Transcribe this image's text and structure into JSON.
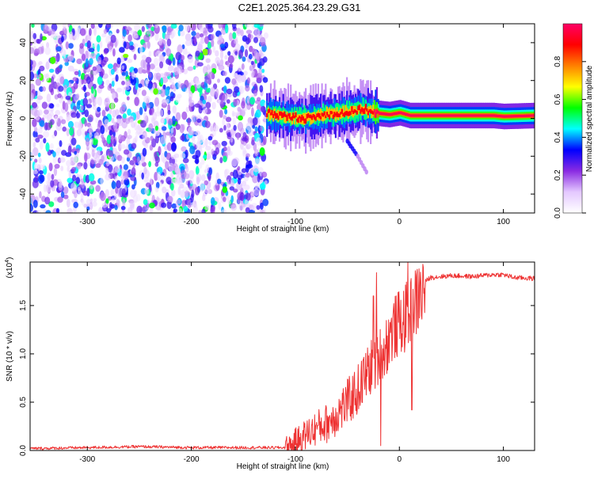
{
  "title": "C2E1.2025.364.23.29.G31",
  "chart_data": [
    {
      "type": "heatmap",
      "name": "spectrogram",
      "xlabel": "Height of straight line (km)",
      "ylabel": "Frequency (Hz)",
      "xlim": [
        -355,
        130
      ],
      "ylim": [
        -50,
        50
      ],
      "xticks": [
        -300,
        -200,
        -100,
        0,
        100
      ],
      "yticks": [
        -40,
        -20,
        0,
        20,
        40
      ],
      "noise_region": [
        -355,
        -128
      ],
      "signal_region": [
        -128,
        130
      ],
      "signal_center_hz": [
        [
          -128,
          3
        ],
        [
          -110,
          1
        ],
        [
          -90,
          0
        ],
        [
          -70,
          2
        ],
        [
          -50,
          3
        ],
        [
          -35,
          5
        ],
        [
          -25,
          3
        ],
        [
          -10,
          2
        ],
        [
          0,
          3
        ],
        [
          10,
          1.5
        ],
        [
          30,
          1.5
        ],
        [
          60,
          1.5
        ],
        [
          90,
          1.5
        ],
        [
          100,
          1
        ],
        [
          130,
          1.5
        ]
      ],
      "faint_trail": [
        [
          -50,
          -12
        ],
        [
          -40,
          -20
        ],
        [
          -30,
          -30
        ]
      ],
      "colorbar": {
        "label": "Normalized spectral amplitude",
        "min": 0.0,
        "max": 1.0,
        "ticks": [
          "0.0",
          "0.2",
          "0.4",
          "0.6",
          "0.8"
        ],
        "tick_values": [
          0.0,
          0.2,
          0.4,
          0.6,
          0.8
        ],
        "colors": [
          "#ffffff",
          "#e4c8ff",
          "#8a2be2",
          "#0000ff",
          "#00ffff",
          "#00ff00",
          "#ffff00",
          "#ff8000",
          "#ff0000",
          "#ff0066"
        ]
      }
    },
    {
      "type": "line",
      "name": "snr",
      "xlabel": "Height of straight line (km)",
      "ylabel": "SNR (10 * v/v)",
      "multiplier": "(x10",
      "multiplier_exp": "4",
      "multiplier_close": ")",
      "xlim": [
        -355,
        130
      ],
      "ylim": [
        0,
        1.95
      ],
      "xticks": [
        -300,
        -200,
        -100,
        0,
        100
      ],
      "yticks": [
        0.0,
        0.5,
        1.0,
        1.5
      ],
      "ytick_labels": [
        "0.0",
        "0.5",
        "1.0",
        "1.5"
      ],
      "color": "#ee3333",
      "series": [
        [
          -355,
          0.02
        ],
        [
          -300,
          0.03
        ],
        [
          -250,
          0.04
        ],
        [
          -200,
          0.03
        ],
        [
          -150,
          0.03
        ],
        [
          -110,
          0.03
        ],
        [
          -100,
          0.1
        ],
        [
          -90,
          0.18
        ],
        [
          -80,
          0.25
        ],
        [
          -70,
          0.3
        ],
        [
          -60,
          0.4
        ],
        [
          -50,
          0.52
        ],
        [
          -40,
          0.65
        ],
        [
          -30,
          0.85
        ],
        [
          -20,
          1.0
        ],
        [
          -15,
          1.05
        ],
        [
          -10,
          1.2
        ],
        [
          -5,
          1.3
        ],
        [
          0,
          1.35
        ],
        [
          5,
          1.4
        ],
        [
          10,
          1.45
        ],
        [
          15,
          1.55
        ],
        [
          20,
          1.65
        ],
        [
          25,
          1.75
        ],
        [
          30,
          1.79
        ],
        [
          50,
          1.81
        ],
        [
          70,
          1.8
        ],
        [
          90,
          1.82
        ],
        [
          100,
          1.82
        ],
        [
          110,
          1.79
        ],
        [
          130,
          1.78
        ]
      ],
      "spikes": [
        [
          -22,
          1.84
        ],
        [
          -18,
          0.05
        ],
        [
          8,
          1.95
        ],
        [
          12,
          0.42
        ],
        [
          -25,
          1.6
        ]
      ]
    }
  ]
}
